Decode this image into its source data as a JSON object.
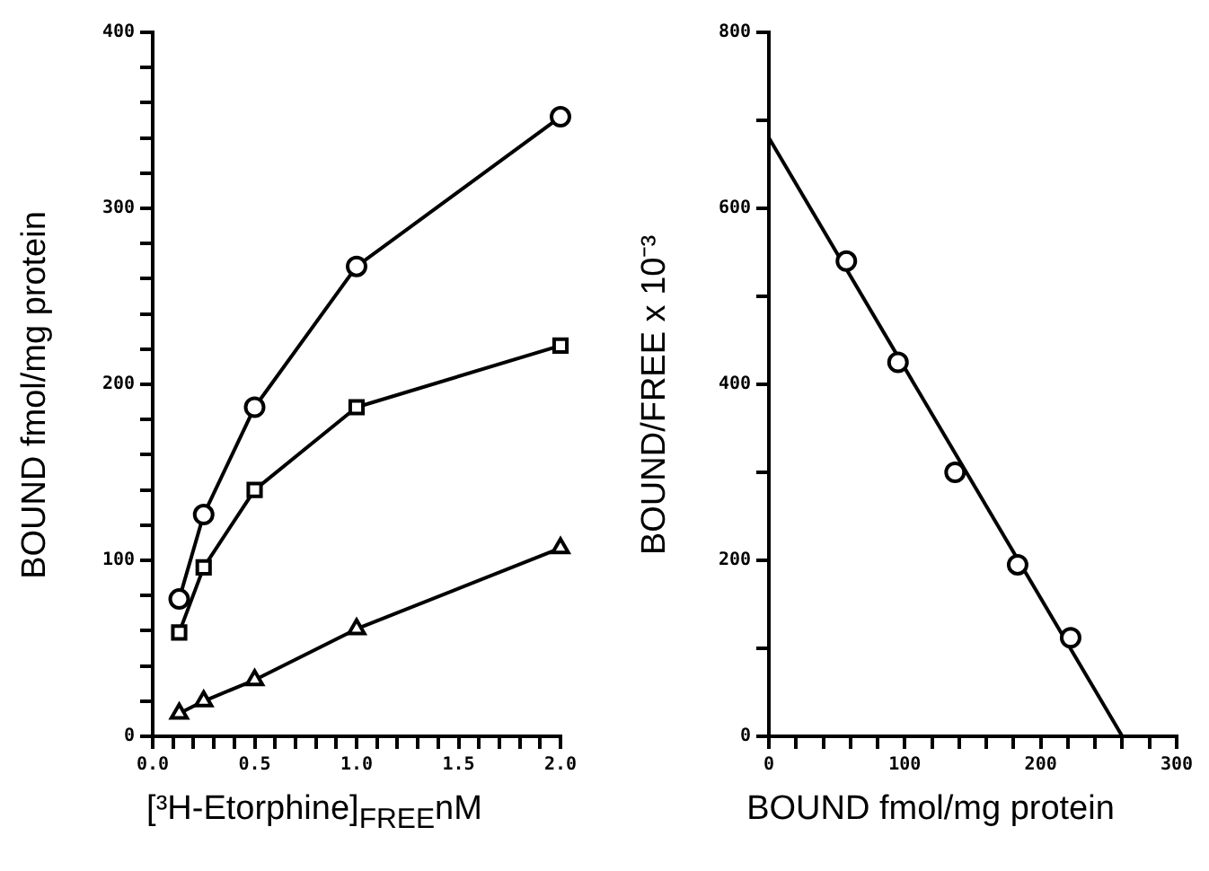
{
  "chart_data": [
    {
      "type": "line",
      "xlabel": "[³H-Etorphine]$_{FREE}$nM",
      "ylabel": "BOUND fmol/mg protein",
      "x": [
        0.13,
        0.25,
        0.5,
        1.0,
        2.0
      ],
      "series": [
        {
          "color": "#000000",
          "marker": "circle",
          "values": [
            78,
            126,
            187,
            267,
            352
          ]
        },
        {
          "color": "#000000",
          "marker": "square",
          "values": [
            59,
            96,
            140,
            187,
            222
          ]
        },
        {
          "color": "#000000",
          "marker": "triangle",
          "values": [
            13,
            20,
            32,
            61,
            107
          ]
        }
      ],
      "line_style": "solid",
      "legend": false,
      "grid": false,
      "xlim": [
        0,
        2.0
      ],
      "ylim": [
        0,
        400
      ],
      "xticks": [
        {
          "value": 0,
          "label": "0.0"
        },
        {
          "value": 0.1,
          "label": null
        },
        {
          "value": 0.2,
          "label": null
        },
        {
          "value": 0.3,
          "label": null
        },
        {
          "value": 0.4,
          "label": null
        },
        0.5,
        {
          "value": 0.6,
          "label": null
        },
        {
          "value": 0.7,
          "label": null
        },
        {
          "value": 0.8,
          "label": null
        },
        {
          "value": 0.9,
          "label": null
        },
        {
          "value": 1,
          "label": "1.0"
        },
        {
          "value": 1.1,
          "label": null
        },
        {
          "value": 1.2,
          "label": null
        },
        {
          "value": 1.3,
          "label": null
        },
        {
          "value": 1.4,
          "label": null
        },
        1.5,
        {
          "value": 1.6,
          "label": null
        },
        {
          "value": 1.7,
          "label": null
        },
        {
          "value": 1.8,
          "label": null
        },
        {
          "value": 1.9,
          "label": null
        },
        {
          "value": 2,
          "label": "2.0"
        }
      ],
      "yticks": [
        0,
        {
          "value": 20,
          "label": null
        },
        {
          "value": 40,
          "label": null
        },
        {
          "value": 60,
          "label": null
        },
        {
          "value": 80,
          "label": null
        },
        100,
        {
          "value": 120,
          "label": null
        },
        {
          "value": 140,
          "label": null
        },
        {
          "value": 160,
          "label": null
        },
        {
          "value": 180,
          "label": null
        },
        200,
        {
          "value": 220,
          "label": null
        },
        {
          "value": 240,
          "label": null
        },
        {
          "value": 260,
          "label": null
        },
        {
          "value": 280,
          "label": null
        },
        300,
        {
          "value": 320,
          "label": null
        },
        {
          "value": 340,
          "label": null
        },
        {
          "value": 360,
          "label": null
        },
        {
          "value": 380,
          "label": null
        },
        400
      ]
    },
    {
      "type": "scatter",
      "xlabel": "BOUND fmol/mg protein",
      "ylabel": "BOUND/FREE x 10⁻³",
      "series": [
        {
          "color": "#000000",
          "marker": "circle",
          "x": [
            57,
            95,
            137,
            183,
            222
          ],
          "values": [
            540,
            425,
            300,
            195,
            112
          ]
        },
        {
          "type": "line",
          "color": "#000000",
          "marker": "none",
          "x": [
            0,
            260
          ],
          "values": [
            680,
            0
          ]
        }
      ],
      "line_style": "solid",
      "legend": false,
      "grid": false,
      "xlim": [
        0,
        300
      ],
      "ylim": [
        0,
        800
      ],
      "xticks": [
        0,
        {
          "value": 20,
          "label": null
        },
        {
          "value": 40,
          "label": null
        },
        {
          "value": 60,
          "label": null
        },
        {
          "value": 80,
          "label": null
        },
        100,
        {
          "value": 120,
          "label": null
        },
        {
          "value": 140,
          "label": null
        },
        {
          "value": 160,
          "label": null
        },
        {
          "value": 180,
          "label": null
        },
        200,
        {
          "value": 220,
          "label": null
        },
        {
          "value": 240,
          "label": null
        },
        {
          "value": 260,
          "label": null
        },
        {
          "value": 280,
          "label": null
        },
        300
      ],
      "yticks": [
        0,
        {
          "value": 100,
          "label": null
        },
        200,
        {
          "value": 300,
          "label": null
        },
        400,
        {
          "value": 500,
          "label": null
        },
        600,
        {
          "value": 700,
          "label": null
        },
        800
      ]
    }
  ]
}
